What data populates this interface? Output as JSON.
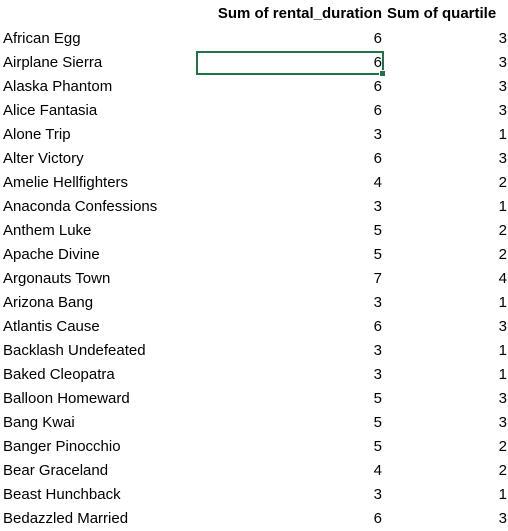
{
  "header": {
    "label": "",
    "rental_duration": "Sum of rental_duration",
    "quartile": "Sum of quartile"
  },
  "rows": [
    {
      "title": "African Egg",
      "rental_duration": "6",
      "quartile": "3"
    },
    {
      "title": "Airplane Sierra",
      "rental_duration": "6",
      "quartile": "3"
    },
    {
      "title": "Alaska Phantom",
      "rental_duration": "6",
      "quartile": "3"
    },
    {
      "title": "Alice Fantasia",
      "rental_duration": "6",
      "quartile": "3"
    },
    {
      "title": "Alone Trip",
      "rental_duration": "3",
      "quartile": "1"
    },
    {
      "title": "Alter Victory",
      "rental_duration": "6",
      "quartile": "3"
    },
    {
      "title": "Amelie Hellfighters",
      "rental_duration": "4",
      "quartile": "2"
    },
    {
      "title": "Anaconda Confessions",
      "rental_duration": "3",
      "quartile": "1"
    },
    {
      "title": "Anthem Luke",
      "rental_duration": "5",
      "quartile": "2"
    },
    {
      "title": "Apache Divine",
      "rental_duration": "5",
      "quartile": "2"
    },
    {
      "title": "Argonauts Town",
      "rental_duration": "7",
      "quartile": "4"
    },
    {
      "title": "Arizona Bang",
      "rental_duration": "3",
      "quartile": "1"
    },
    {
      "title": "Atlantis Cause",
      "rental_duration": "6",
      "quartile": "3"
    },
    {
      "title": "Backlash Undefeated",
      "rental_duration": "3",
      "quartile": "1"
    },
    {
      "title": "Baked Cleopatra",
      "rental_duration": "3",
      "quartile": "1"
    },
    {
      "title": "Balloon Homeward",
      "rental_duration": "5",
      "quartile": "3"
    },
    {
      "title": "Bang Kwai",
      "rental_duration": "5",
      "quartile": "3"
    },
    {
      "title": "Banger Pinocchio",
      "rental_duration": "5",
      "quartile": "2"
    },
    {
      "title": "Bear Graceland",
      "rental_duration": "4",
      "quartile": "2"
    },
    {
      "title": "Beast Hunchback",
      "rental_duration": "3",
      "quartile": "1"
    },
    {
      "title": "Bedazzled Married",
      "rental_duration": "6",
      "quartile": "3"
    }
  ],
  "selection": {
    "row_index": 1,
    "column": "rental_duration",
    "color": "#217346"
  }
}
